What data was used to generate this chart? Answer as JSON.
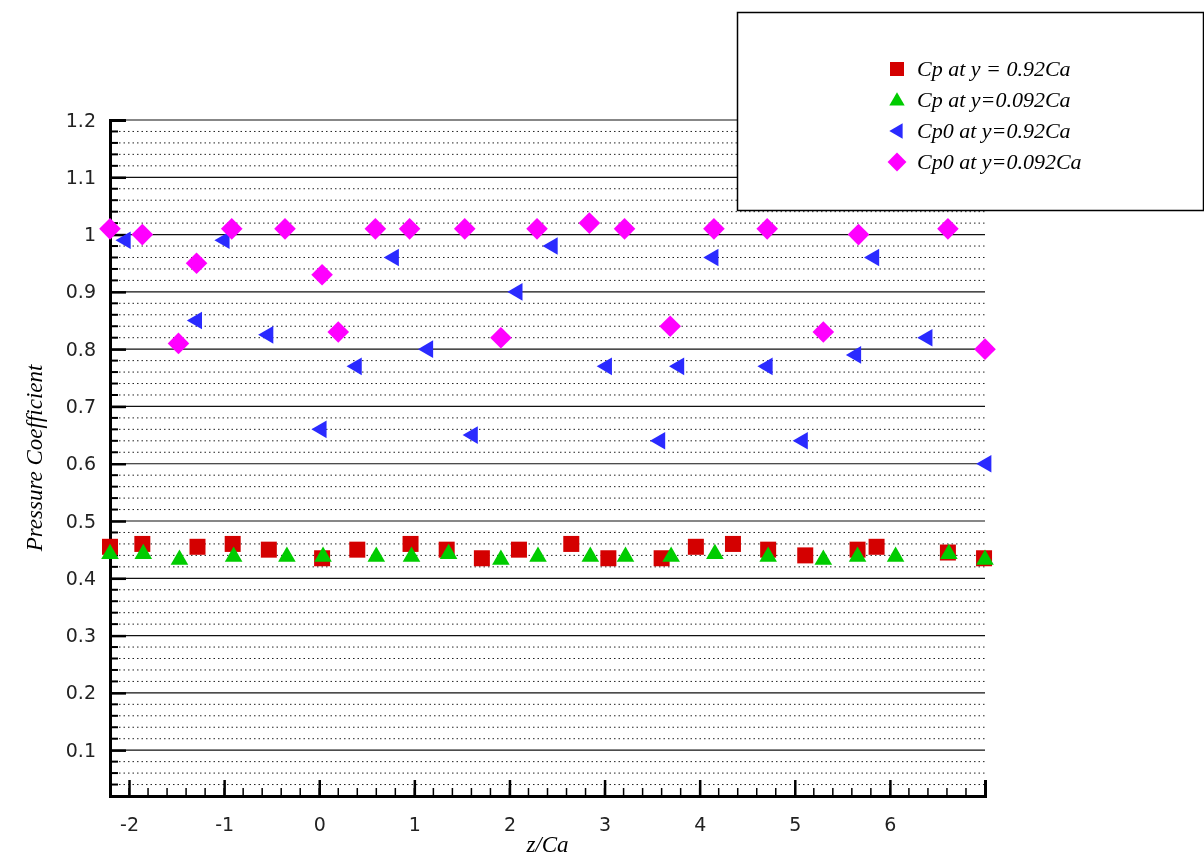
{
  "chart_data": {
    "type": "scatter",
    "xlabel": "z/Ca",
    "ylabel": "Pressure Coefficient",
    "xlim": [
      -2.2,
      7
    ],
    "xticks": [
      -2,
      -1,
      0,
      1,
      2,
      3,
      4,
      5,
      6
    ],
    "ylim": [
      0.02,
      1.2
    ],
    "yticks": [
      {
        "value": 0.1,
        "label": "0.1"
      },
      {
        "value": 0.2,
        "label": "0.2"
      },
      {
        "value": 0.3,
        "label": "0.3"
      },
      {
        "value": 0.4,
        "label": "0.4"
      },
      {
        "value": 0.5,
        "label": "0.5"
      },
      {
        "value": 0.6,
        "label": "0.6"
      },
      {
        "value": 0.7,
        "label": "0.7"
      },
      {
        "value": 0.8,
        "label": "0.8"
      },
      {
        "value": 0.9,
        "label": "0.9"
      },
      {
        "value": 1,
        "label": "1"
      },
      {
        "value": 1.1,
        "label": "1.1"
      },
      {
        "value": 1.2,
        "label": "1.2"
      }
    ],
    "grid": "y",
    "legend": "top right",
    "series": [
      {
        "name": "Cp at y = 0.92Ca",
        "color": "#d40000",
        "marker": "square",
        "x": [
          -2.2,
          -1.86,
          -1.28,
          -0.91,
          -0.53,
          0.03,
          0.4,
          0.96,
          1.34,
          1.71,
          2.1,
          2.65,
          3.04,
          3.6,
          3.96,
          4.35,
          4.72,
          5.11,
          5.66,
          5.86,
          6.61,
          6.99
        ],
        "values": [
          0.455,
          0.46,
          0.455,
          0.46,
          0.45,
          0.435,
          0.45,
          0.46,
          0.45,
          0.435,
          0.45,
          0.46,
          0.435,
          0.435,
          0.455,
          0.46,
          0.45,
          0.44,
          0.45,
          0.455,
          0.445,
          0.435
        ]
      },
      {
        "name": "Cp at y=0.092Ca",
        "color": "#00cc00",
        "marker": "triangle",
        "x": [
          -2.2,
          -1.85,
          -1.47,
          -0.9,
          -0.34,
          0.04,
          0.6,
          0.97,
          1.36,
          1.91,
          2.3,
          2.85,
          3.22,
          3.7,
          4.16,
          4.72,
          5.3,
          5.66,
          6.06,
          6.62,
          7
        ],
        "values": [
          0.445,
          0.445,
          0.435,
          0.44,
          0.44,
          0.44,
          0.44,
          0.44,
          0.445,
          0.435,
          0.44,
          0.44,
          0.44,
          0.44,
          0.445,
          0.44,
          0.435,
          0.44,
          0.44,
          0.445,
          0.435
        ]
      },
      {
        "name": "Cp0 at y=0.92Ca",
        "color": "#2a2aff",
        "marker": "triangle-left",
        "x": [
          -2.05,
          -1.3,
          -1.01,
          -0.55,
          0.01,
          0.38,
          0.77,
          1.13,
          1.6,
          2.07,
          2.44,
          3.01,
          3.57,
          3.77,
          4.13,
          4.7,
          5.07,
          5.63,
          5.82,
          6.38,
          7
        ],
        "values": [
          0.99,
          0.85,
          0.99,
          0.825,
          0.66,
          0.77,
          0.96,
          0.8,
          0.65,
          0.9,
          0.98,
          0.77,
          0.64,
          0.77,
          0.96,
          0.77,
          0.64,
          0.79,
          0.96,
          0.82,
          0.6
        ]
      },
      {
        "name": "Cp0 at y=0.092Ca",
        "color": "#ff00ff",
        "marker": "diamond",
        "x": [
          -2.2,
          -1.86,
          -1.48,
          -1.29,
          -0.92,
          -0.36,
          0.03,
          0.2,
          0.59,
          0.95,
          1.53,
          1.91,
          2.29,
          2.84,
          3.21,
          3.69,
          4.15,
          4.71,
          5.3,
          5.67,
          6.61,
          7
        ],
        "values": [
          1.01,
          1.0,
          0.81,
          0.95,
          1.01,
          1.01,
          0.93,
          0.83,
          1.01,
          1.01,
          1.01,
          0.82,
          1.01,
          1.02,
          1.01,
          0.84,
          1.01,
          1.01,
          0.83,
          1.0,
          1.01,
          0.8
        ]
      }
    ]
  }
}
